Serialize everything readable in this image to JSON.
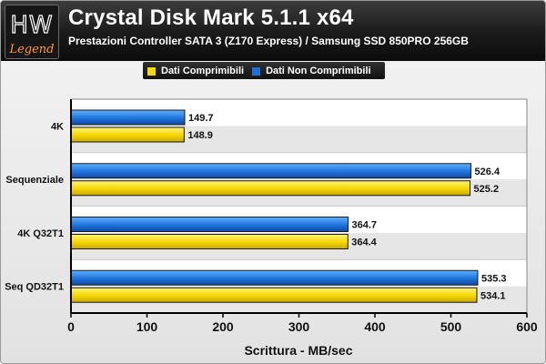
{
  "header": {
    "logo_text": "HW Legend",
    "title": "Crystal Disk Mark 5.1.1 x64",
    "subtitle": "Prestazioni Controller SATA 3 (Z170 Express) / Samsung SSD 850PRO 256GB"
  },
  "colors": {
    "yellow": "#f5d800",
    "blue": "#1c6fd8",
    "band": "#e6e6e6"
  },
  "chart_data": {
    "type": "bar",
    "orientation": "horizontal",
    "title": "Crystal Disk Mark 5.1.1 x64",
    "subtitle": "Prestazioni Controller SATA 3 (Z170 Express) / Samsung SSD 850PRO 256GB",
    "categories": [
      "4K",
      "Sequenziale",
      "4K Q32T1",
      "Seq QD32T1"
    ],
    "series": [
      {
        "name": "Dati Non Comprimibili",
        "color": "#1c6fd8",
        "values": [
          149.7,
          526.4,
          364.7,
          535.3
        ],
        "labels": [
          "149.7",
          "526.4",
          "364.7",
          "535.3"
        ]
      },
      {
        "name": "Dati Comprimibili",
        "color": "#f5d800",
        "values": [
          148.9,
          525.2,
          364.4,
          534.1
        ],
        "labels": [
          "148.9",
          "525.2",
          "364.4",
          "534.1"
        ]
      }
    ],
    "legend_order": [
      "Dati Comprimibili",
      "Dati Non Comprimibili"
    ],
    "legend_position": "top",
    "xlabel": "Scrittura - MB/sec",
    "xlim": [
      0,
      600
    ],
    "xticks": [
      "0",
      "100",
      "200",
      "300",
      "400",
      "500",
      "600"
    ],
    "grid": true
  }
}
